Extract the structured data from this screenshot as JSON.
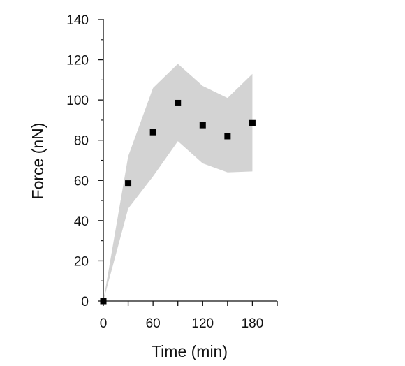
{
  "chart_data": {
    "type": "scatter",
    "title": "",
    "xlabel": "Time (min)",
    "ylabel": "Force (nN)",
    "xlim": [
      0,
      210
    ],
    "ylim": [
      0,
      140
    ],
    "x_ticks": [
      0,
      60,
      120,
      180
    ],
    "x_minor_ticks": [
      30,
      90,
      150,
      210
    ],
    "y_ticks": [
      0,
      20,
      40,
      60,
      80,
      100,
      120,
      140
    ],
    "grid": false,
    "legend": "none",
    "series": [
      {
        "points": [
          {
            "x": 0,
            "y": 0
          },
          {
            "x": 30,
            "y": 58.5
          },
          {
            "x": 60,
            "y": 84
          },
          {
            "x": 90,
            "y": 98.5
          },
          {
            "x": 120,
            "y": 87.5
          },
          {
            "x": 150,
            "y": 82
          },
          {
            "x": 180,
            "y": 88.5
          }
        ],
        "band": {
          "x": [
            0,
            30,
            60,
            90,
            120,
            150,
            180
          ],
          "upper": [
            0,
            72,
            106,
            118,
            107,
            101,
            113
          ],
          "lower": [
            0,
            46,
            62,
            79.5,
            68.5,
            64,
            64.5
          ]
        },
        "marker_color": "#000000",
        "band_color": "#d3d3d3"
      }
    ]
  }
}
